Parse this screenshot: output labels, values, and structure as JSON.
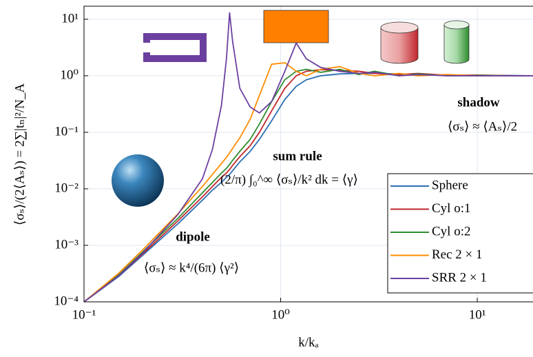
{
  "chart_data": {
    "type": "line",
    "xlabel": "k/kₐ",
    "ylabel": "⟨σₛ⟩/(2⟨Aₛ⟩) = 2∑|tₙ|²/N_A",
    "log_x": true,
    "log_y": true,
    "grid": true,
    "legend": "lower right",
    "xlim": [
      0.1,
      19.2
    ],
    "ylim": [
      0.0001,
      17
    ],
    "xticks": [
      {
        "value": 0.1,
        "label": "10⁻¹"
      },
      {
        "value": 1,
        "label": "10⁰"
      },
      {
        "value": 10,
        "label": "10¹"
      }
    ],
    "yticks": [
      {
        "value": 0.0001,
        "label": "10⁻⁴"
      },
      {
        "value": 0.001,
        "label": "10⁻³"
      },
      {
        "value": 0.01,
        "label": "10⁻²"
      },
      {
        "value": 0.1,
        "label": "10⁻¹"
      },
      {
        "value": 1,
        "label": "10⁰"
      },
      {
        "value": 10,
        "label": "10¹"
      }
    ],
    "x": [
      0.1,
      0.15,
      0.2,
      0.3,
      0.4,
      0.45,
      0.5,
      0.53,
      0.55,
      0.57,
      0.62,
      0.7,
      0.78,
      0.9,
      1.05,
      1.2,
      1.35,
      1.6,
      2,
      2.5,
      3,
      4,
      5,
      7,
      10,
      15,
      19.2
    ],
    "series": [
      {
        "name": "Sphere",
        "color": "#2b6fb3",
        "values": [
          0.0001,
          0.00028,
          0.00068,
          0.0024,
          0.0063,
          0.0095,
          0.013,
          0.016,
          0.018,
          0.021,
          0.03,
          0.046,
          0.075,
          0.16,
          0.38,
          0.65,
          0.85,
          1.0,
          1.08,
          1.1,
          1.1,
          1.08,
          1.05,
          1.03,
          1.02,
          1.01,
          1.0
        ]
      },
      {
        "name": "Cyl o:1",
        "color": "#c0262d",
        "values": [
          0.0001,
          0.00029,
          0.00072,
          0.0027,
          0.0072,
          0.011,
          0.016,
          0.019,
          0.022,
          0.026,
          0.037,
          0.058,
          0.1,
          0.24,
          0.6,
          1.0,
          1.2,
          1.28,
          1.25,
          1.2,
          1.1,
          1.05,
          1.1,
          1.02,
          1.03,
          1.0,
          1.0
        ]
      },
      {
        "name": "Cyl o:2",
        "color": "#2e8b2e",
        "values": [
          0.0001,
          0.0003,
          0.00078,
          0.003,
          0.0085,
          0.013,
          0.019,
          0.023,
          0.027,
          0.032,
          0.046,
          0.075,
          0.14,
          0.35,
          0.85,
          1.2,
          1.3,
          1.15,
          1.3,
          1.05,
          1.2,
          1.0,
          1.08,
          1.0,
          1.02,
          1.0,
          1.0
        ]
      },
      {
        "name": "Rec 2 × 1",
        "color": "#ff8c00",
        "values": [
          0.0001,
          0.00032,
          0.00085,
          0.0036,
          0.011,
          0.018,
          0.028,
          0.036,
          0.043,
          0.052,
          0.08,
          0.17,
          0.45,
          1.6,
          1.7,
          1.2,
          1.0,
          1.3,
          1.45,
          1.1,
          1.0,
          1.1,
          1.0,
          1.05,
          1.0,
          1.0,
          1.0
        ]
      },
      {
        "name": "SRR 2 × 1",
        "color": "#6b3fa0",
        "values": [
          0.0001,
          0.00029,
          0.00075,
          0.0035,
          0.015,
          0.05,
          0.3,
          2,
          13,
          4,
          0.6,
          0.28,
          0.22,
          0.35,
          1.2,
          3.8,
          2.0,
          1.4,
          1.2,
          1.1,
          1.15,
          1.0,
          1.05,
          1.0,
          1.0,
          1.0,
          1.0
        ]
      }
    ],
    "annotations": [
      "dipole",
      "⟨σₛ⟩ ≈ k⁴/(6π) ⟨γ²⟩",
      "sum rule",
      "(2/π) ∫₀^∞ ⟨σₛ⟩/k² dk = ⟨γ⟩",
      "shadow",
      "⟨σₛ⟩ ≈ ⟨Aₛ⟩/2"
    ]
  }
}
